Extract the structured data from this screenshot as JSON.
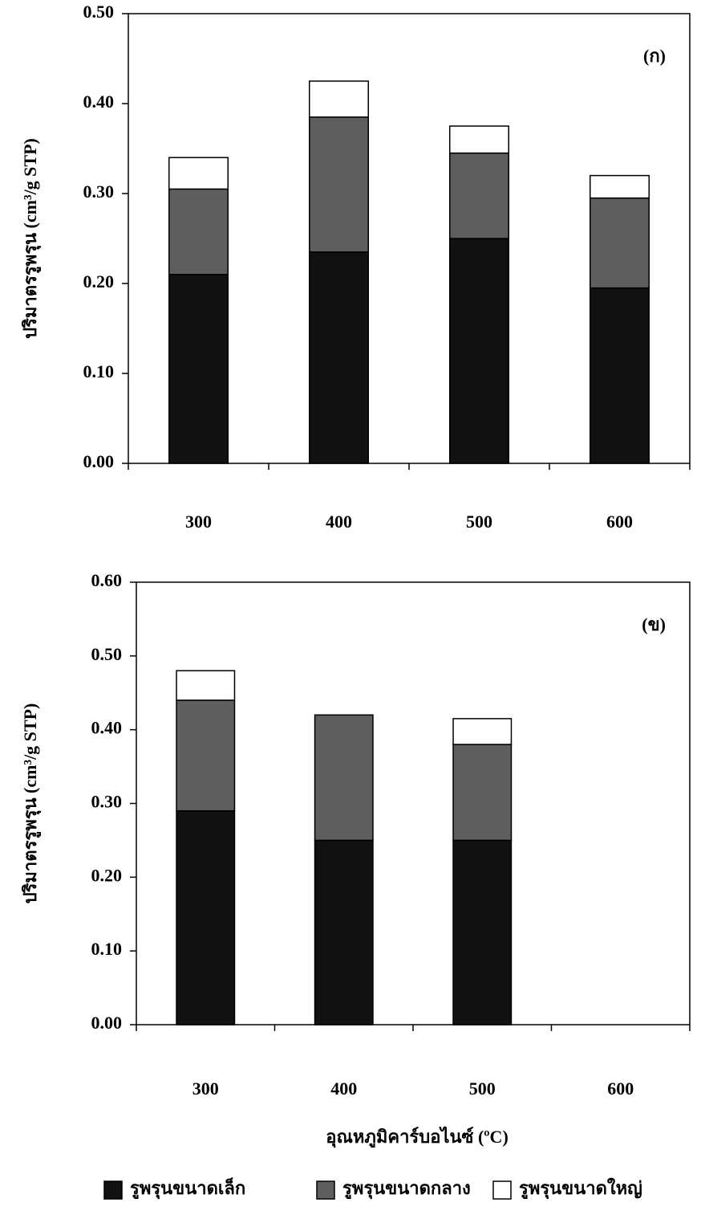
{
  "chart_data": [
    {
      "type": "stacked_bar",
      "annotation": "(ก)",
      "y_label": "ปริมาตรรูพรุน (cm³/g STP)",
      "categories": [
        "300",
        "400",
        "500",
        "600"
      ],
      "series": [
        {
          "name": "รูพรุนขนาดเล็ก",
          "color": "#111111",
          "values": [
            0.21,
            0.235,
            0.25,
            0.195
          ]
        },
        {
          "name": "รูพรุนขนาดกลาง",
          "color": "#5e5e5e",
          "values": [
            0.095,
            0.15,
            0.095,
            0.1
          ]
        },
        {
          "name": "รูพรุนขนาดใหญ่",
          "color": "#ffffff",
          "values": [
            0.035,
            0.04,
            0.03,
            0.025
          ]
        }
      ],
      "ylim": [
        0,
        0.5
      ],
      "yticks": [
        {
          "value": 0,
          "label": "0.00"
        },
        {
          "value": 0.1,
          "label": "0.10"
        },
        {
          "value": 0.2,
          "label": "0.20"
        },
        {
          "value": 0.3,
          "label": "0.30"
        },
        {
          "value": 0.4,
          "label": "0.40"
        },
        {
          "value": 0.5,
          "label": "0.50"
        }
      ]
    },
    {
      "type": "stacked_bar",
      "annotation": "(ข)",
      "y_label": "ปริมาตรรูพรุน (cm³/g STP)",
      "x_label": "อุณหภูมิคาร์บอไนซ์ (ºC)",
      "categories": [
        "300",
        "400",
        "500",
        "600"
      ],
      "series": [
        {
          "color": "#111111",
          "values": [
            0.29,
            0.25,
            0.25,
            null
          ]
        },
        {
          "color": "#5e5e5e",
          "values": [
            0.15,
            0.17,
            0.13,
            null
          ]
        },
        {
          "color": "#ffffff",
          "values": [
            0.04,
            0,
            0.035,
            null
          ]
        }
      ],
      "ylim": [
        0,
        0.6
      ],
      "yticks": [
        {
          "value": 0,
          "label": "0.00"
        },
        {
          "value": 0.1,
          "label": "0.10"
        },
        {
          "value": 0.2,
          "label": "0.20"
        },
        {
          "value": 0.3,
          "label": "0.30"
        },
        {
          "value": 0.4,
          "label": "0.40"
        },
        {
          "value": 0.5,
          "label": "0.50"
        },
        {
          "value": 0.6,
          "label": "0.60"
        }
      ]
    }
  ]
}
